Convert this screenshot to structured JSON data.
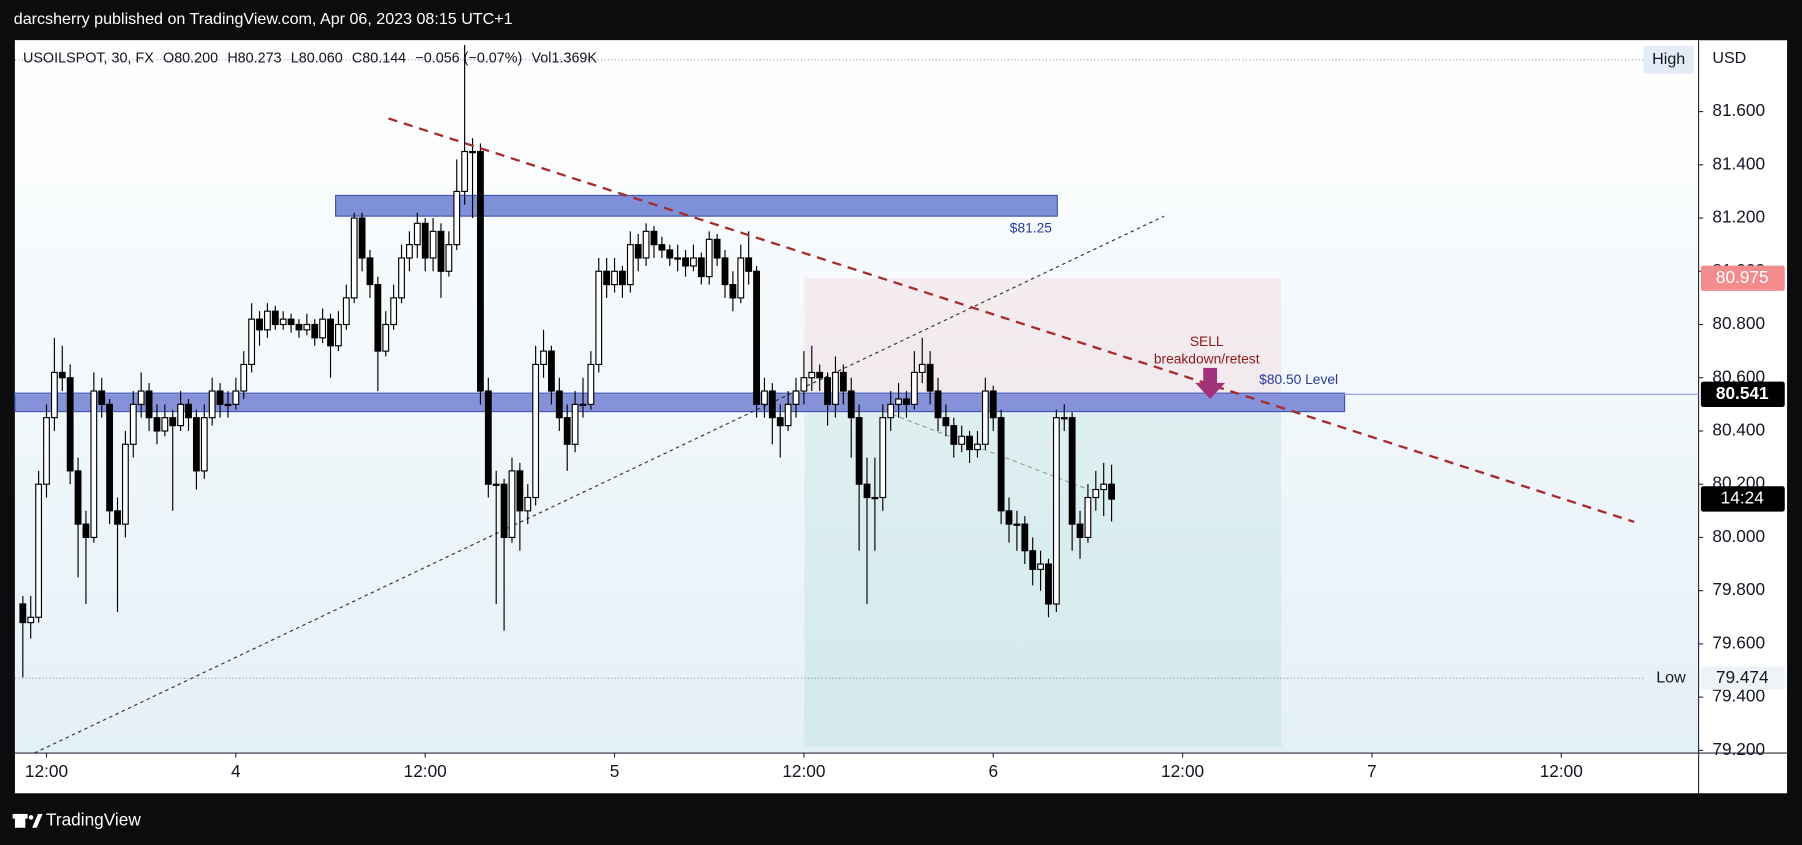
{
  "header": {
    "text": "darcsherry published on TradingView.com, Apr 06, 2023 08:15 UTC+1"
  },
  "chart_data": {
    "type": "candlestick",
    "legend": {
      "symbol": "USOILSPOT, 30, FX",
      "open": "O80.200",
      "high": "H80.273",
      "low": "L80.060",
      "close": "C80.144",
      "change": "−0.056 (−0.07%)",
      "volume": "Vol1.369K"
    },
    "up_color": "#ffffff",
    "down_color": "#000000",
    "wick_color": "#000000",
    "xlim": [
      10,
      116.7
    ],
    "xticks": [
      {
        "value": 12,
        "label": "12:00"
      },
      {
        "value": 24,
        "label": "4"
      },
      {
        "value": 36,
        "label": "12:00"
      },
      {
        "value": 48,
        "label": "5"
      },
      {
        "value": 60,
        "label": "12:00"
      },
      {
        "value": 72,
        "label": "6"
      },
      {
        "value": 84,
        "label": "12:00"
      },
      {
        "value": 96,
        "label": "7"
      },
      {
        "value": 108,
        "label": "12:00"
      }
    ],
    "ylim": [
      79.19,
      81.868
    ],
    "yticks": [
      {
        "value": 79.2,
        "label": "79.200"
      },
      {
        "value": 79.4,
        "label": "79.400"
      },
      {
        "value": 79.6,
        "label": "79.600"
      },
      {
        "value": 79.8,
        "label": "79.800"
      },
      {
        "value": 80,
        "label": "80.000"
      },
      {
        "value": 80.2,
        "label": "80.200"
      },
      {
        "value": 80.4,
        "label": "80.400"
      },
      {
        "value": 80.6,
        "label": "80.600"
      },
      {
        "value": 80.8,
        "label": "80.800"
      },
      {
        "value": 81,
        "label": "81.000"
      },
      {
        "value": 81.2,
        "label": "81.200"
      },
      {
        "value": 81.4,
        "label": "81.400"
      },
      {
        "value": 81.6,
        "label": "81.600"
      }
    ],
    "grid": false,
    "price_axis": {
      "currency": "USD",
      "high_label": "High",
      "low_label": "Low",
      "low_value": "79.474",
      "target": "80.975",
      "level": "80.541",
      "countdown": "14:24"
    },
    "annotations": {
      "zone_top": "$81.25",
      "sell": "SELL",
      "sell_note": "breakdown/retest",
      "zone_level": "$80.50 Level"
    },
    "x": [
      10.5,
      11,
      11.5,
      12,
      12.5,
      13,
      13.5,
      14,
      14.5,
      15,
      15.5,
      16,
      16.5,
      17,
      17.5,
      18,
      18.5,
      19,
      19.5,
      20,
      20.5,
      21,
      21.5,
      22,
      22.5,
      23,
      23.5,
      24,
      24.5,
      25,
      25.5,
      26,
      26.5,
      27,
      27.5,
      28,
      28.5,
      29,
      29.5,
      30,
      30.5,
      31,
      31.5,
      32,
      32.5,
      33,
      33.5,
      34,
      34.5,
      35,
      35.5,
      36,
      36.5,
      37,
      37.5,
      38,
      38.5,
      39,
      39.5,
      40,
      40.5,
      41,
      41.5,
      42,
      42.5,
      43,
      43.5,
      44,
      44.5,
      45,
      45.5,
      46,
      46.5,
      47,
      47.5,
      48,
      48.5,
      49,
      49.5,
      50,
      50.5,
      51,
      51.5,
      52,
      52.5,
      53,
      53.5,
      54,
      54.5,
      55,
      55.5,
      56,
      56.5,
      57,
      57.5,
      58,
      58.5,
      59,
      59.5,
      60,
      60.5,
      61,
      61.5,
      62,
      62.5,
      63,
      63.5,
      64,
      64.5,
      65,
      65.5,
      66,
      66.5,
      67,
      67.5,
      68,
      68.5,
      69,
      69.5,
      70,
      70.5,
      71,
      71.5,
      72,
      72.5,
      73,
      73.5,
      74,
      74.5,
      75,
      75.5,
      76,
      76.5,
      77,
      77.5,
      78,
      78.5,
      79,
      79.5
    ],
    "candles": [
      [
        79.75,
        79.78,
        79.474,
        79.68
      ],
      [
        79.68,
        79.78,
        79.62,
        79.7
      ],
      [
        79.7,
        80.25,
        79.68,
        80.2
      ],
      [
        80.2,
        80.5,
        80.15,
        80.45
      ],
      [
        80.45,
        80.75,
        80.4,
        80.62
      ],
      [
        80.62,
        80.72,
        80.55,
        80.6
      ],
      [
        80.6,
        80.65,
        80.2,
        80.25
      ],
      [
        80.25,
        80.3,
        79.85,
        80.05
      ],
      [
        80.05,
        80.1,
        79.75,
        80.0
      ],
      [
        80.0,
        80.62,
        79.98,
        80.55
      ],
      [
        80.55,
        80.6,
        80.45,
        80.5
      ],
      [
        80.5,
        80.52,
        80.05,
        80.1
      ],
      [
        80.1,
        80.15,
        79.72,
        80.05
      ],
      [
        80.05,
        80.4,
        80.0,
        80.35
      ],
      [
        80.35,
        80.55,
        80.3,
        80.5
      ],
      [
        80.5,
        80.62,
        80.45,
        80.55
      ],
      [
        80.55,
        80.58,
        80.4,
        80.45
      ],
      [
        80.45,
        80.5,
        80.35,
        80.4
      ],
      [
        80.4,
        80.5,
        80.38,
        80.45
      ],
      [
        80.45,
        80.48,
        80.1,
        80.42
      ],
      [
        80.42,
        80.55,
        80.4,
        80.5
      ],
      [
        80.5,
        80.52,
        80.4,
        80.45
      ],
      [
        80.45,
        80.48,
        80.18,
        80.25
      ],
      [
        80.25,
        80.5,
        80.22,
        80.45
      ],
      [
        80.45,
        80.6,
        80.42,
        80.55
      ],
      [
        80.55,
        80.58,
        80.45,
        80.5
      ],
      [
        80.5,
        80.55,
        80.45,
        80.5
      ],
      [
        80.5,
        80.6,
        80.48,
        80.55
      ],
      [
        80.55,
        80.7,
        80.52,
        80.65
      ],
      [
        80.65,
        80.88,
        80.62,
        80.82
      ],
      [
        80.82,
        80.85,
        80.72,
        80.78
      ],
      [
        80.78,
        80.88,
        80.75,
        80.85
      ],
      [
        80.85,
        80.87,
        80.78,
        80.8
      ],
      [
        80.8,
        80.85,
        80.78,
        80.82
      ],
      [
        80.82,
        80.84,
        80.77,
        80.8
      ],
      [
        80.8,
        80.82,
        80.75,
        80.78
      ],
      [
        80.78,
        80.84,
        80.76,
        80.8
      ],
      [
        80.8,
        80.82,
        80.72,
        80.75
      ],
      [
        80.75,
        80.86,
        80.73,
        80.82
      ],
      [
        80.82,
        80.84,
        80.6,
        80.72
      ],
      [
        80.72,
        80.85,
        80.7,
        80.8
      ],
      [
        80.8,
        80.95,
        80.78,
        80.9
      ],
      [
        80.9,
        81.22,
        80.88,
        81.2
      ],
      [
        81.2,
        81.22,
        81.0,
        81.05
      ],
      [
        81.05,
        81.08,
        80.9,
        80.95
      ],
      [
        80.95,
        80.98,
        80.55,
        80.7
      ],
      [
        80.7,
        80.85,
        80.68,
        80.8
      ],
      [
        80.8,
        80.95,
        80.78,
        80.9
      ],
      [
        80.9,
        81.1,
        80.88,
        81.05
      ],
      [
        81.05,
        81.15,
        81.0,
        81.1
      ],
      [
        81.1,
        81.22,
        81.05,
        81.18
      ],
      [
        81.18,
        81.2,
        81.0,
        81.05
      ],
      [
        81.05,
        81.2,
        81.0,
        81.15
      ],
      [
        81.15,
        81.18,
        80.9,
        81.0
      ],
      [
        81.0,
        81.15,
        80.98,
        81.1
      ],
      [
        81.1,
        81.42,
        81.08,
        81.3
      ],
      [
        81.3,
        81.85,
        81.25,
        81.45
      ],
      [
        81.45,
        81.5,
        81.2,
        81.45
      ],
      [
        81.45,
        81.48,
        80.5,
        80.55
      ],
      [
        80.55,
        80.6,
        80.15,
        80.2
      ],
      [
        80.2,
        80.25,
        79.75,
        80.2
      ],
      [
        80.2,
        80.22,
        79.65,
        80.0
      ],
      [
        80.0,
        80.3,
        79.98,
        80.25
      ],
      [
        80.25,
        80.28,
        79.95,
        80.1
      ],
      [
        80.1,
        80.2,
        80.05,
        80.15
      ],
      [
        80.15,
        80.72,
        80.12,
        80.65
      ],
      [
        80.65,
        80.78,
        80.6,
        80.7
      ],
      [
        80.7,
        80.72,
        80.5,
        80.55
      ],
      [
        80.55,
        80.6,
        80.4,
        80.45
      ],
      [
        80.45,
        80.5,
        80.25,
        80.35
      ],
      [
        80.35,
        80.55,
        80.32,
        80.5
      ],
      [
        80.5,
        80.6,
        80.45,
        80.5
      ],
      [
        80.5,
        80.7,
        80.48,
        80.65
      ],
      [
        80.65,
        81.05,
        80.62,
        81.0
      ],
      [
        81.0,
        81.05,
        80.9,
        80.95
      ],
      [
        80.95,
        81.05,
        80.92,
        81.0
      ],
      [
        81.0,
        81.02,
        80.9,
        80.95
      ],
      [
        80.95,
        81.15,
        80.92,
        81.1
      ],
      [
        81.1,
        81.14,
        81.0,
        81.05
      ],
      [
        81.05,
        81.18,
        81.02,
        81.15
      ],
      [
        81.15,
        81.17,
        81.05,
        81.1
      ],
      [
        81.1,
        81.13,
        81.05,
        81.08
      ],
      [
        81.08,
        81.1,
        81.02,
        81.05
      ],
      [
        81.05,
        81.1,
        81.0,
        81.05
      ],
      [
        81.05,
        81.08,
        80.98,
        81.02
      ],
      [
        81.02,
        81.1,
        81.0,
        81.05
      ],
      [
        81.05,
        81.07,
        80.95,
        80.98
      ],
      [
        80.98,
        81.15,
        80.95,
        81.12
      ],
      [
        81.12,
        81.14,
        81.02,
        81.05
      ],
      [
        81.05,
        81.08,
        80.9,
        80.95
      ],
      [
        80.95,
        81.0,
        80.85,
        80.9
      ],
      [
        80.9,
        81.1,
        80.88,
        81.05
      ],
      [
        81.05,
        81.15,
        80.95,
        81.0
      ],
      [
        81.0,
        81.02,
        80.45,
        80.5
      ],
      [
        80.5,
        80.6,
        80.45,
        80.55
      ],
      [
        80.55,
        80.58,
        80.35,
        80.45
      ],
      [
        80.45,
        80.5,
        80.3,
        80.42
      ],
      [
        80.42,
        80.55,
        80.4,
        80.5
      ],
      [
        80.5,
        80.6,
        80.45,
        80.55
      ],
      [
        80.55,
        80.7,
        80.5,
        80.6
      ],
      [
        80.6,
        80.72,
        80.55,
        80.62
      ],
      [
        80.62,
        80.65,
        80.55,
        80.6
      ],
      [
        80.6,
        80.62,
        80.42,
        80.5
      ],
      [
        80.5,
        80.68,
        80.45,
        80.62
      ],
      [
        80.62,
        80.65,
        80.5,
        80.55
      ],
      [
        80.55,
        80.6,
        80.3,
        80.45
      ],
      [
        80.45,
        80.5,
        79.95,
        80.2
      ],
      [
        80.2,
        80.3,
        79.75,
        80.15
      ],
      [
        80.15,
        80.3,
        79.95,
        80.15
      ],
      [
        80.15,
        80.5,
        80.1,
        80.45
      ],
      [
        80.45,
        80.55,
        80.4,
        80.5
      ],
      [
        80.5,
        80.58,
        80.45,
        80.52
      ],
      [
        80.52,
        80.55,
        80.45,
        80.5
      ],
      [
        80.5,
        80.7,
        80.48,
        80.62
      ],
      [
        80.62,
        80.75,
        80.58,
        80.65
      ],
      [
        80.65,
        80.7,
        80.5,
        80.55
      ],
      [
        80.55,
        80.6,
        80.4,
        80.45
      ],
      [
        80.45,
        80.5,
        80.38,
        80.42
      ],
      [
        80.42,
        80.45,
        80.3,
        80.35
      ],
      [
        80.35,
        80.42,
        80.32,
        80.38
      ],
      [
        80.38,
        80.4,
        80.28,
        80.33
      ],
      [
        80.33,
        80.4,
        80.3,
        80.35
      ],
      [
        80.35,
        80.6,
        80.33,
        80.55
      ],
      [
        80.55,
        80.57,
        80.4,
        80.45
      ],
      [
        80.45,
        80.48,
        80.05,
        80.1
      ],
      [
        80.1,
        80.15,
        79.98,
        80.05
      ],
      [
        80.05,
        80.1,
        79.95,
        80.05
      ],
      [
        80.05,
        80.08,
        79.9,
        79.95
      ],
      [
        79.95,
        80.0,
        79.82,
        79.88
      ],
      [
        79.88,
        79.95,
        79.8,
        79.9
      ],
      [
        79.9,
        79.92,
        79.7,
        79.75
      ],
      [
        79.75,
        80.48,
        79.72,
        80.45
      ],
      [
        80.45,
        80.5,
        80.4,
        80.45
      ],
      [
        80.45,
        80.47,
        79.95,
        80.05
      ],
      [
        80.05,
        80.1,
        79.92,
        80.0
      ],
      [
        80.0,
        80.2,
        79.98,
        80.15
      ],
      [
        80.15,
        80.25,
        80.1,
        80.18
      ],
      [
        80.18,
        80.28,
        80.08,
        80.2
      ],
      [
        80.2,
        80.273,
        80.06,
        80.144
      ]
    ]
  },
  "footer": {
    "brand": "TradingView"
  }
}
